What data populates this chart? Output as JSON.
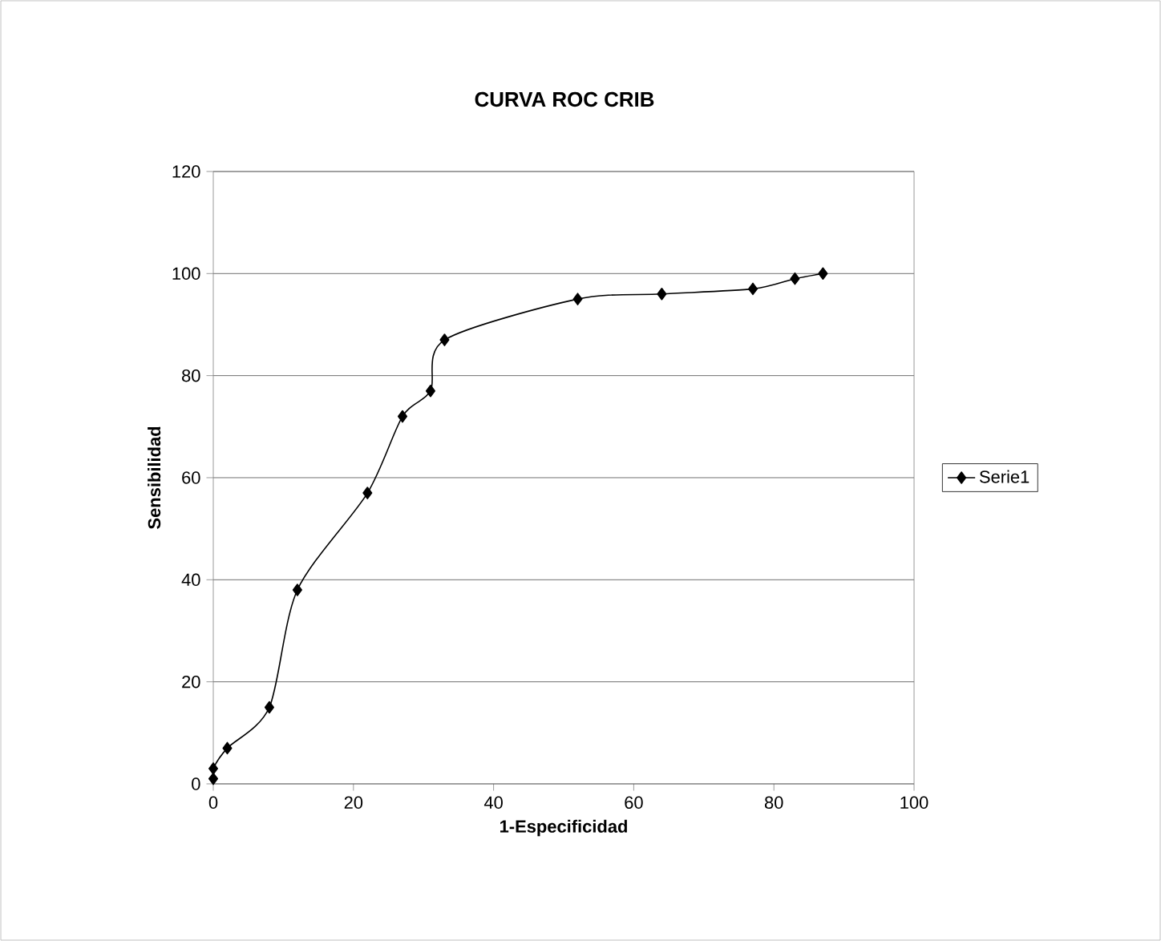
{
  "chart_data": {
    "type": "line",
    "title": "CURVA ROC  CRIB",
    "xlabel": "1-Especificidad",
    "ylabel": "Sensibilidad",
    "x": [
      0,
      0,
      2,
      8,
      12,
      22,
      27,
      31,
      33,
      52,
      64,
      77,
      83,
      87
    ],
    "series": [
      {
        "name": "Serie1",
        "color": "#000000",
        "values": [
          1,
          3,
          7,
          15,
          38,
          57,
          72,
          77,
          87,
          95,
          96,
          97,
          99,
          100
        ]
      }
    ],
    "xlim": [
      0,
      100
    ],
    "ylim": [
      0,
      120
    ],
    "xticks": [
      0,
      20,
      40,
      60,
      80,
      100
    ],
    "yticks": [
      0,
      20,
      40,
      60,
      80,
      100,
      120
    ],
    "grid": "y",
    "legend": "right",
    "marker": "diamond",
    "line_style": "solid"
  }
}
